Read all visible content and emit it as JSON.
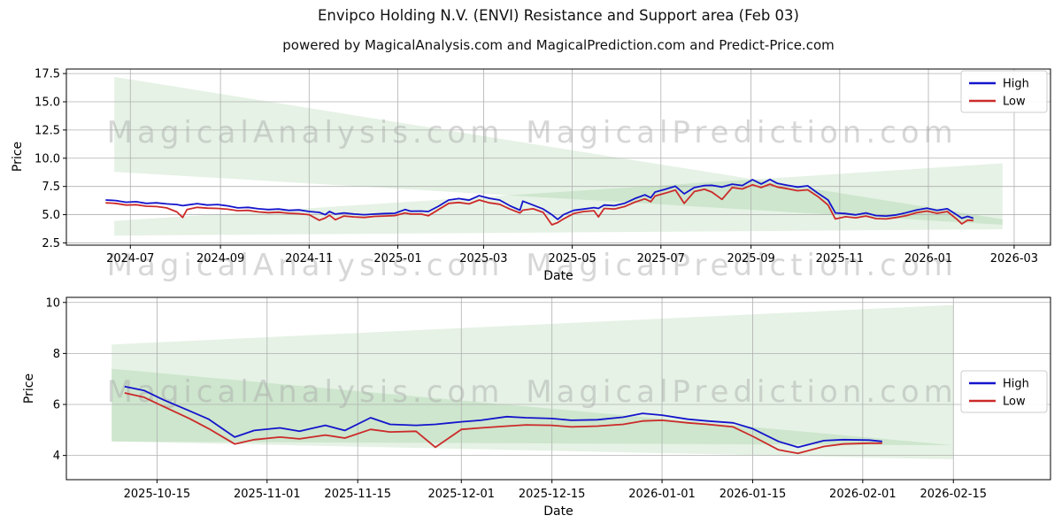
{
  "title": "Envipco Holding N.V. (ENVI) Resistance and Support area (Feb 03)",
  "subtitle": "powered by MagicalAnalysis.com and MagicalPrediction.com and Predict-Price.com",
  "watermarks": [
    "MagicalAnalysis.com",
    "MagicalPrediction.com"
  ],
  "colors": {
    "high": "#1414cc",
    "low": "#cc2a2a",
    "band": "#008000",
    "grid": "#b0b0b0",
    "frame": "#000000",
    "watermark": "#a8a8a8",
    "text": "#000000",
    "legend_border": "#cccccc"
  },
  "chart_data": [
    {
      "type": "line",
      "ylabel": "Price",
      "xlabel": "Date",
      "legend": [
        "High",
        "Low"
      ],
      "legend_position": "upper right",
      "grid": true,
      "ylim": [
        2.3,
        17.9
      ],
      "yticks": [
        [
          "2.5",
          "2.5"
        ],
        [
          "5.0",
          "5.0"
        ],
        [
          "7.5",
          "7.5"
        ],
        [
          "10.0",
          "10.0"
        ],
        [
          "12.5",
          "12.5"
        ],
        [
          "15.0",
          "15.0"
        ],
        [
          "17.5",
          "17.5"
        ]
      ],
      "xlim": [
        "2024-05-18",
        "2026-03-26"
      ],
      "xticks": [
        [
          "2024-07-01",
          "2024-07"
        ],
        [
          "2024-09-01",
          "2024-09"
        ],
        [
          "2024-11-01",
          "2024-11"
        ],
        [
          "2025-01-01",
          "2025-01"
        ],
        [
          "2025-03-01",
          "2025-03"
        ],
        [
          "2025-05-01",
          "2025-05"
        ],
        [
          "2025-07-01",
          "2025-07"
        ],
        [
          "2025-09-01",
          "2025-09"
        ],
        [
          "2025-11-01",
          "2025-11"
        ],
        [
          "2026-01-01",
          "2026-01"
        ],
        [
          "2026-03-01",
          "2026-03"
        ]
      ],
      "bands": [
        {
          "name": "resistance-area",
          "points": [
            [
              "2024-06-20",
              17.2
            ],
            [
              "2026-02-21",
              4.6
            ],
            [
              "2026-02-21",
              4.1
            ],
            [
              "2024-06-20",
              8.8
            ]
          ]
        },
        {
          "name": "support-area",
          "points": [
            [
              "2024-06-20",
              4.45
            ],
            [
              "2026-02-21",
              9.55
            ],
            [
              "2026-02-21",
              3.7
            ],
            [
              "2024-06-20",
              3.15
            ]
          ]
        }
      ],
      "dates": [
        "2024-06-14",
        "2024-06-21",
        "2024-06-28",
        "2024-07-05",
        "2024-07-12",
        "2024-07-19",
        "2024-07-26",
        "2024-08-02",
        "2024-08-06",
        "2024-08-09",
        "2024-08-16",
        "2024-08-23",
        "2024-08-30",
        "2024-09-06",
        "2024-09-13",
        "2024-09-20",
        "2024-09-27",
        "2024-10-04",
        "2024-10-11",
        "2024-10-18",
        "2024-10-25",
        "2024-11-01",
        "2024-11-08",
        "2024-11-12",
        "2024-11-15",
        "2024-11-19",
        "2024-11-25",
        "2024-12-02",
        "2024-12-09",
        "2024-12-16",
        "2024-12-23",
        "2024-12-30",
        "2025-01-06",
        "2025-01-10",
        "2025-01-17",
        "2025-01-22",
        "2025-01-29",
        "2025-02-05",
        "2025-02-12",
        "2025-02-19",
        "2025-02-26",
        "2025-03-05",
        "2025-03-12",
        "2025-03-19",
        "2025-03-26",
        "2025-03-28",
        "2025-04-04",
        "2025-04-11",
        "2025-04-17",
        "2025-04-21",
        "2025-04-25",
        "2025-05-02",
        "2025-05-09",
        "2025-05-16",
        "2025-05-19",
        "2025-05-23",
        "2025-05-30",
        "2025-06-06",
        "2025-06-13",
        "2025-06-20",
        "2025-06-24",
        "2025-06-27",
        "2025-07-04",
        "2025-07-11",
        "2025-07-17",
        "2025-07-24",
        "2025-07-31",
        "2025-08-05",
        "2025-08-12",
        "2025-08-19",
        "2025-08-26",
        "2025-09-02",
        "2025-09-08",
        "2025-09-14",
        "2025-09-19",
        "2025-09-26",
        "2025-10-03",
        "2025-10-10",
        "2025-10-17",
        "2025-10-24",
        "2025-10-29",
        "2025-11-05",
        "2025-11-12",
        "2025-11-19",
        "2025-11-26",
        "2025-12-03",
        "2025-12-10",
        "2025-12-17",
        "2025-12-24",
        "2025-12-31",
        "2026-01-07",
        "2026-01-14",
        "2026-01-21",
        "2026-01-24",
        "2026-01-28",
        "2026-02-01"
      ],
      "high": [
        6.3,
        6.25,
        6.1,
        6.15,
        6.0,
        6.05,
        5.95,
        5.9,
        5.8,
        5.85,
        5.98,
        5.85,
        5.9,
        5.78,
        5.6,
        5.65,
        5.52,
        5.45,
        5.5,
        5.38,
        5.42,
        5.28,
        5.2,
        5.0,
        5.28,
        5.05,
        5.15,
        5.05,
        5.0,
        5.05,
        5.1,
        5.12,
        5.45,
        5.3,
        5.32,
        5.28,
        5.75,
        6.3,
        6.42,
        6.28,
        6.68,
        6.45,
        6.3,
        5.8,
        5.4,
        6.2,
        5.85,
        5.5,
        5.0,
        4.58,
        5.0,
        5.38,
        5.5,
        5.62,
        5.55,
        5.85,
        5.8,
        6.0,
        6.42,
        6.75,
        6.5,
        7.0,
        7.25,
        7.52,
        6.85,
        7.4,
        7.58,
        7.6,
        7.45,
        7.7,
        7.58,
        8.1,
        7.72,
        8.12,
        7.78,
        7.6,
        7.45,
        7.55,
        6.9,
        6.3,
        5.15,
        5.1,
        4.98,
        5.15,
        4.92,
        4.88,
        4.98,
        5.18,
        5.42,
        5.58,
        5.38,
        5.52,
        4.95,
        4.68,
        4.85,
        4.68
      ],
      "low": [
        6.05,
        6.0,
        5.85,
        5.88,
        5.75,
        5.72,
        5.6,
        5.25,
        4.75,
        5.45,
        5.65,
        5.58,
        5.55,
        5.48,
        5.35,
        5.38,
        5.25,
        5.18,
        5.22,
        5.12,
        5.08,
        5.0,
        4.5,
        4.7,
        4.95,
        4.55,
        4.88,
        4.8,
        4.75,
        4.85,
        4.88,
        4.92,
        5.15,
        5.05,
        5.05,
        4.9,
        5.45,
        6.0,
        6.08,
        5.95,
        6.3,
        6.05,
        5.92,
        5.5,
        5.15,
        5.4,
        5.52,
        5.2,
        4.1,
        4.3,
        4.62,
        5.1,
        5.28,
        5.35,
        4.8,
        5.55,
        5.5,
        5.72,
        6.1,
        6.4,
        6.15,
        6.65,
        6.9,
        7.18,
        6.0,
        7.05,
        7.25,
        7.0,
        6.35,
        7.4,
        7.28,
        7.65,
        7.4,
        7.7,
        7.45,
        7.3,
        7.12,
        7.2,
        6.6,
        5.85,
        4.62,
        4.82,
        4.72,
        4.88,
        4.65,
        4.62,
        4.75,
        4.92,
        5.18,
        5.32,
        5.12,
        5.28,
        4.55,
        4.18,
        4.52,
        4.48
      ]
    },
    {
      "type": "line",
      "ylabel": "Price",
      "xlabel": "Date",
      "legend": [
        "High",
        "Low"
      ],
      "legend_position": "center right",
      "grid": true,
      "ylim": [
        3.05,
        10.2
      ],
      "yticks": [
        [
          "4",
          "4"
        ],
        [
          "6",
          "6"
        ],
        [
          "8",
          "8"
        ],
        [
          "10",
          "10"
        ]
      ],
      "xlim": [
        "2025-10-01",
        "2026-03-02"
      ],
      "xticks": [
        [
          "2025-10-15",
          "2025-10-15"
        ],
        [
          "2025-11-01",
          "2025-11-01"
        ],
        [
          "2025-11-15",
          "2025-11-15"
        ],
        [
          "2025-12-01",
          "2025-12-01"
        ],
        [
          "2025-12-15",
          "2025-12-15"
        ],
        [
          "2026-01-01",
          "2026-01-01"
        ],
        [
          "2026-01-15",
          "2026-01-15"
        ],
        [
          "2026-02-01",
          "2026-02-01"
        ],
        [
          "2026-02-15",
          "2026-02-15"
        ]
      ],
      "bands": [
        {
          "name": "resistance-area",
          "points": [
            [
              "2025-10-08",
              8.35
            ],
            [
              "2026-02-15",
              9.9
            ],
            [
              "2026-02-15",
              3.85
            ],
            [
              "2025-10-08",
              4.55
            ]
          ]
        },
        {
          "name": "support-area",
          "points": [
            [
              "2025-10-08",
              7.4
            ],
            [
              "2026-02-15",
              4.4
            ],
            [
              "2025-10-08",
              4.55
            ]
          ]
        }
      ],
      "dates": [
        "2025-10-10",
        "2025-10-13",
        "2025-10-16",
        "2025-10-20",
        "2025-10-23",
        "2025-10-27",
        "2025-10-30",
        "2025-11-03",
        "2025-11-06",
        "2025-11-10",
        "2025-11-13",
        "2025-11-17",
        "2025-11-20",
        "2025-11-24",
        "2025-11-27",
        "2025-12-01",
        "2025-12-04",
        "2025-12-08",
        "2025-12-11",
        "2025-12-15",
        "2025-12-18",
        "2025-12-22",
        "2025-12-26",
        "2025-12-29",
        "2026-01-01",
        "2026-01-05",
        "2026-01-08",
        "2026-01-12",
        "2026-01-15",
        "2026-01-19",
        "2026-01-22",
        "2026-01-26",
        "2026-01-29",
        "2026-02-02",
        "2026-02-04"
      ],
      "high": [
        6.7,
        6.55,
        6.18,
        5.75,
        5.42,
        4.72,
        4.98,
        5.08,
        4.95,
        5.18,
        4.98,
        5.48,
        5.22,
        5.18,
        5.22,
        5.32,
        5.38,
        5.52,
        5.48,
        5.45,
        5.38,
        5.4,
        5.5,
        5.65,
        5.58,
        5.42,
        5.35,
        5.28,
        5.05,
        4.55,
        4.32,
        4.58,
        4.62,
        4.6,
        4.55
      ],
      "low": [
        6.45,
        6.28,
        5.92,
        5.45,
        5.05,
        4.45,
        4.62,
        4.72,
        4.65,
        4.8,
        4.68,
        5.02,
        4.92,
        4.95,
        4.32,
        5.02,
        5.08,
        5.15,
        5.2,
        5.18,
        5.12,
        5.15,
        5.22,
        5.35,
        5.38,
        5.28,
        5.22,
        5.12,
        4.75,
        4.22,
        4.08,
        4.35,
        4.45,
        4.48,
        4.48
      ]
    }
  ]
}
